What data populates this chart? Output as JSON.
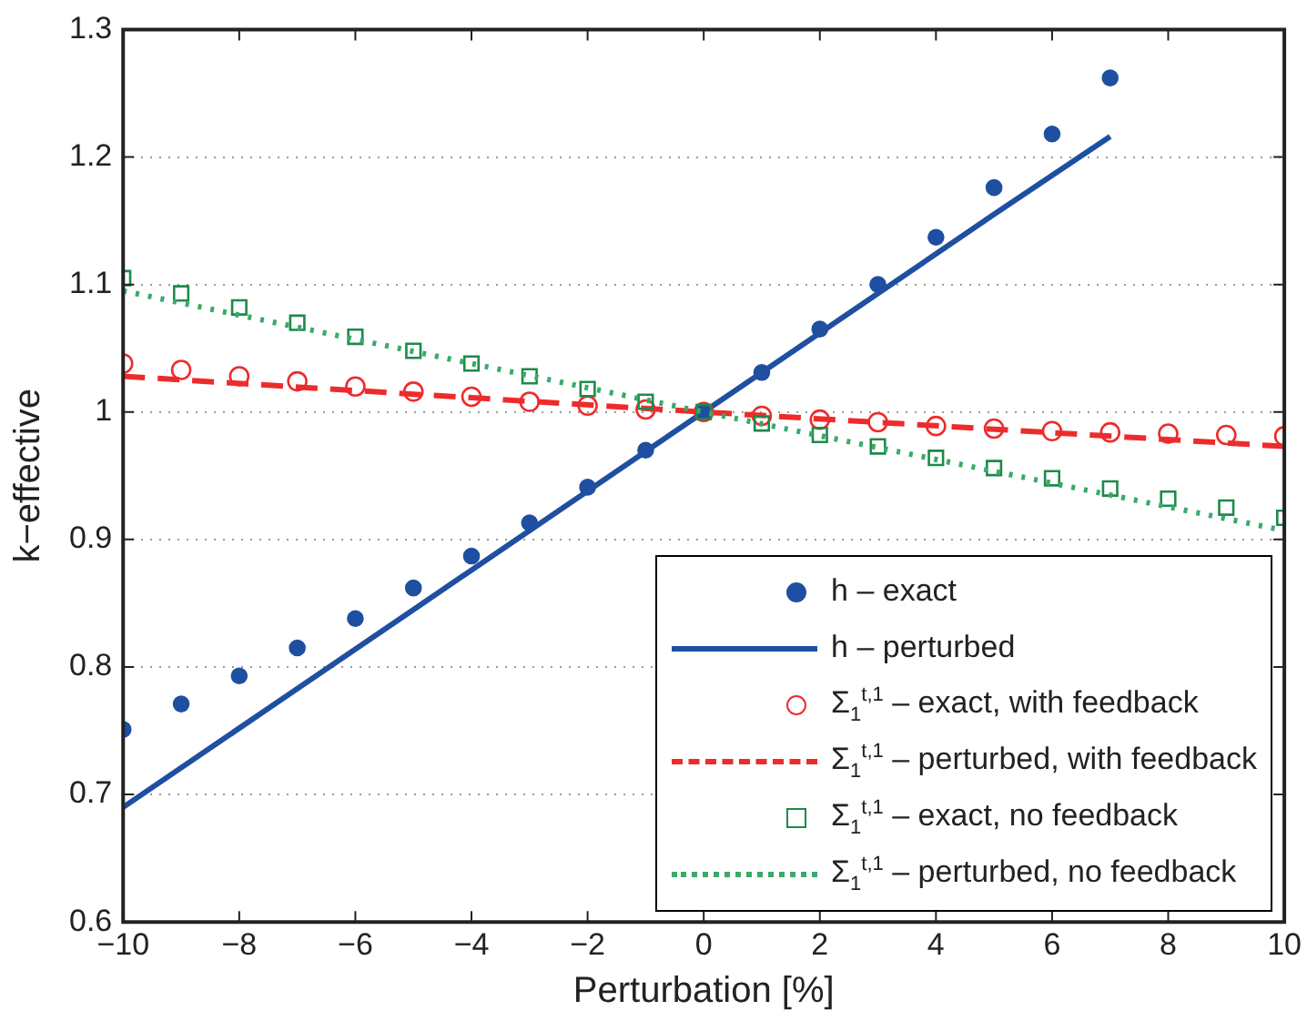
{
  "chart_data": {
    "type": "line",
    "xlabel": "Perturbation [%]",
    "ylabel": "k−effective",
    "xlim": [
      -10,
      10
    ],
    "xticks": [
      -10,
      -8,
      -6,
      -4,
      -2,
      0,
      2,
      4,
      6,
      8,
      10
    ],
    "ylim": [
      0.6,
      1.3
    ],
    "yticks": [
      0.6,
      0.7,
      0.8,
      0.9,
      1,
      1.1,
      1.2,
      1.3
    ],
    "grid": "y",
    "legend": "bottom right",
    "series": [
      {
        "name": "h – exact",
        "type": "scatter",
        "marker": "circle",
        "color": "#1f4fa0",
        "x": [
          -10,
          -9,
          -8,
          -7,
          -6,
          -5,
          -4,
          -3,
          -2,
          -1,
          0,
          1,
          2,
          3,
          4,
          5,
          6,
          7
        ],
        "values": [
          0.751,
          0.771,
          0.793,
          0.815,
          0.838,
          0.862,
          0.887,
          0.913,
          0.941,
          0.97,
          1.0,
          1.031,
          1.065,
          1.1,
          1.137,
          1.176,
          1.218,
          1.262
        ]
      },
      {
        "name": "h – perturbed",
        "type": "line",
        "line_style": "solid",
        "color": "#1f4fa0",
        "x": [
          -10,
          -5,
          0,
          5,
          7
        ],
        "values": [
          0.69,
          0.845,
          1.0,
          1.155,
          1.216
        ]
      },
      {
        "name": "Σ$_{1}$$^{t,1}$ – exact, with feedback",
        "type": "scatter",
        "marker": "circle",
        "color": "#ee2b2b",
        "x": [
          -10,
          -9,
          -8,
          -7,
          -6,
          -5,
          -4,
          -3,
          -2,
          -1,
          0,
          1,
          2,
          3,
          4,
          5,
          6,
          7,
          8,
          9,
          10
        ],
        "values": [
          1.038,
          1.033,
          1.028,
          1.024,
          1.02,
          1.016,
          1.012,
          1.008,
          1.005,
          1.002,
          1.0,
          0.997,
          0.994,
          0.992,
          0.989,
          0.987,
          0.985,
          0.984,
          0.983,
          0.982,
          0.981
        ]
      },
      {
        "name": "Σ$_{1}$$^{t,1}$ – perturbed, with feedback",
        "type": "line",
        "line_style": "dashed",
        "color": "#ee2b2b",
        "x": [
          -10,
          0,
          10
        ],
        "values": [
          1.028,
          1.0,
          0.973
        ]
      },
      {
        "name": "Σ$_{1}$$^{t,1}$ – exact, no feedback",
        "type": "scatter",
        "marker": "square",
        "color": "#1e8a4a",
        "x": [
          -10,
          -9,
          -8,
          -7,
          -6,
          -5,
          -4,
          -3,
          -2,
          -1,
          0,
          1,
          2,
          3,
          4,
          5,
          6,
          7,
          8,
          9,
          10
        ],
        "values": [
          1.105,
          1.093,
          1.082,
          1.07,
          1.059,
          1.048,
          1.038,
          1.028,
          1.018,
          1.008,
          1.0,
          0.991,
          0.982,
          0.973,
          0.964,
          0.956,
          0.948,
          0.94,
          0.932,
          0.925,
          0.917
        ]
      },
      {
        "name": "Σ$_{1}$$^{t,1}$ – perturbed, no feedback",
        "type": "line",
        "line_style": "dotted",
        "color": "#3aaa6a",
        "x": [
          -10,
          0,
          10
        ],
        "values": [
          1.095,
          1.0,
          0.907
        ]
      }
    ]
  }
}
